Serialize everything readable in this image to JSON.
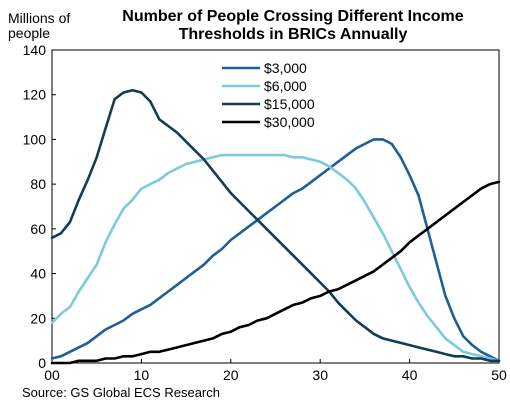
{
  "chart_data": {
    "type": "line",
    "title": "Number of People Crossing Different Income Thresholds in BRICs Annually",
    "ylabel": "Millions of people",
    "xlabel": "",
    "source": "Source: GS Global ECS Research",
    "xlim": [
      0,
      50
    ],
    "ylim": [
      0,
      140
    ],
    "xticks": [
      0,
      10,
      20,
      30,
      40,
      50
    ],
    "yticks": [
      0,
      20,
      40,
      60,
      80,
      100,
      120,
      140
    ],
    "grid": false,
    "legend_position": "top-center",
    "series": [
      {
        "name": "$3,000",
        "color": "#1f5f96",
        "x": [
          0,
          1,
          2,
          3,
          4,
          5,
          6,
          7,
          8,
          9,
          10,
          11,
          12,
          13,
          14,
          15,
          16,
          17,
          18,
          19,
          20,
          21,
          22,
          23,
          24,
          25,
          26,
          27,
          28,
          29,
          30,
          31,
          32,
          33,
          34,
          35,
          36,
          37,
          38,
          39,
          40,
          41,
          42,
          43,
          44,
          45,
          46,
          47,
          48,
          49,
          50
        ],
        "y": [
          2,
          3,
          5,
          7,
          9,
          12,
          15,
          17,
          19,
          22,
          24,
          26,
          29,
          32,
          35,
          38,
          41,
          44,
          48,
          51,
          55,
          58,
          61,
          64,
          67,
          70,
          73,
          76,
          78,
          81,
          84,
          87,
          90,
          93,
          96,
          98,
          100,
          100,
          98,
          92,
          84,
          75,
          60,
          45,
          30,
          20,
          12,
          8,
          5,
          3,
          1
        ]
      },
      {
        "name": "$6,000",
        "color": "#7ccbdc",
        "x": [
          0,
          1,
          2,
          3,
          4,
          5,
          6,
          7,
          8,
          9,
          10,
          11,
          12,
          13,
          14,
          15,
          16,
          17,
          18,
          19,
          20,
          21,
          22,
          23,
          24,
          25,
          26,
          27,
          28,
          29,
          30,
          31,
          32,
          33,
          34,
          35,
          36,
          37,
          38,
          39,
          40,
          41,
          42,
          43,
          44,
          45,
          46,
          47,
          48,
          49,
          50
        ],
        "y": [
          18,
          22,
          25,
          32,
          38,
          44,
          54,
          62,
          69,
          73,
          78,
          80,
          82,
          85,
          87,
          89,
          90,
          91,
          92,
          93,
          93,
          93,
          93,
          93,
          93,
          93,
          93,
          92,
          92,
          91,
          90,
          88,
          85,
          82,
          78,
          72,
          65,
          58,
          50,
          42,
          34,
          27,
          21,
          16,
          11,
          8,
          5,
          4,
          3,
          2,
          1
        ]
      },
      {
        "name": "$15,000",
        "color": "#123d55",
        "x": [
          0,
          1,
          2,
          3,
          4,
          5,
          6,
          7,
          8,
          9,
          10,
          11,
          12,
          13,
          14,
          15,
          16,
          17,
          18,
          19,
          20,
          21,
          22,
          23,
          24,
          25,
          26,
          27,
          28,
          29,
          30,
          31,
          32,
          33,
          34,
          35,
          36,
          37,
          38,
          39,
          40,
          41,
          42,
          43,
          44,
          45,
          46,
          47,
          48,
          49,
          50
        ],
        "y": [
          56,
          58,
          63,
          73,
          82,
          92,
          105,
          118,
          121,
          122,
          121,
          117,
          109,
          106,
          103,
          99,
          95,
          91,
          86,
          81,
          76,
          72,
          68,
          64,
          60,
          56,
          52,
          48,
          44,
          40,
          36,
          32,
          27,
          23,
          19,
          16,
          13,
          11,
          10,
          9,
          8,
          7,
          6,
          5,
          4,
          3,
          3,
          2,
          2,
          1,
          1
        ]
      },
      {
        "name": "$30,000",
        "color": "#000000",
        "x": [
          0,
          1,
          2,
          3,
          4,
          5,
          6,
          7,
          8,
          9,
          10,
          11,
          12,
          13,
          14,
          15,
          16,
          17,
          18,
          19,
          20,
          21,
          22,
          23,
          24,
          25,
          26,
          27,
          28,
          29,
          30,
          31,
          32,
          33,
          34,
          35,
          36,
          37,
          38,
          39,
          40,
          41,
          42,
          43,
          44,
          45,
          46,
          47,
          48,
          49,
          50
        ],
        "y": [
          0,
          0,
          0,
          1,
          1,
          1,
          2,
          2,
          3,
          3,
          4,
          5,
          5,
          6,
          7,
          8,
          9,
          10,
          11,
          13,
          14,
          16,
          17,
          19,
          20,
          22,
          24,
          26,
          27,
          29,
          30,
          32,
          33,
          35,
          37,
          39,
          41,
          44,
          47,
          50,
          54,
          57,
          60,
          63,
          66,
          69,
          72,
          75,
          78,
          80,
          81
        ]
      }
    ]
  }
}
